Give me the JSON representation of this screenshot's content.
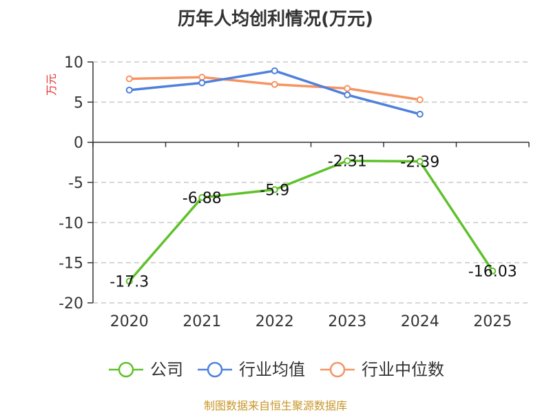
{
  "chart_data": {
    "type": "line",
    "title": "历年人均创利情况(万元)",
    "ylabel": "万元",
    "xlabel": "",
    "categories": [
      "2020",
      "2021",
      "2022",
      "2023",
      "2024",
      "2025"
    ],
    "ylim": [
      -20,
      10
    ],
    "yticks": [
      10,
      5,
      0,
      -5,
      -10,
      -15,
      -20
    ],
    "grid": true,
    "legend_position": "bottom",
    "series": [
      {
        "name": "公司",
        "color": "#5ec12a",
        "values": [
          -17.3,
          -6.88,
          -5.9,
          -2.31,
          -2.39,
          -16.03
        ],
        "labels": [
          "-17.3",
          "-6.88",
          "-5.9",
          "-2.31",
          "-2.39",
          "-16.03"
        ]
      },
      {
        "name": "行业均值",
        "color": "#4e80dc",
        "values": [
          6.5,
          7.4,
          8.9,
          5.9,
          3.5,
          null
        ]
      },
      {
        "name": "行业中位数",
        "color": "#f59462",
        "values": [
          7.9,
          8.1,
          7.2,
          6.7,
          5.3,
          null
        ]
      }
    ],
    "source": "制图数据来自恒生聚源数据库"
  }
}
